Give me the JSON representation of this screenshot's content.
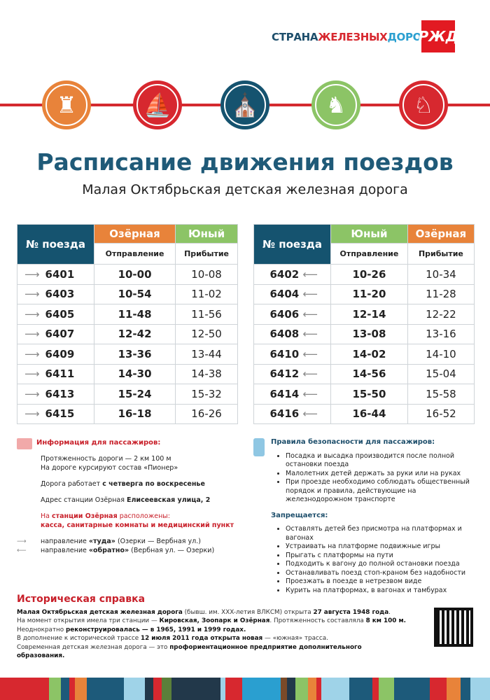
{
  "brand": {
    "part1": "СТРАНА",
    "part2": "ЖЕЛЕЗНЫХ",
    "part3": "ДОРОГ",
    "logo": "РЖД"
  },
  "icons": [
    {
      "name": "peter-paul-fortress-icon",
      "color": "#e8833a",
      "glyph": "♜"
    },
    {
      "name": "ship-icon",
      "color": "#d7282f",
      "glyph": "⛵"
    },
    {
      "name": "cathedral-icon",
      "color": "#15536f",
      "glyph": "⛪"
    },
    {
      "name": "bronze-horseman-icon",
      "color": "#8cc466",
      "glyph": "♞"
    },
    {
      "name": "griffin-icon",
      "color": "#d7282f",
      "glyph": "♘"
    }
  ],
  "title": "Расписание движения поездов",
  "subtitle": "Малая Октябрьская детская железная дорога",
  "colors": {
    "dark": "#15536f",
    "orange": "#e8833a",
    "green": "#8cc466",
    "red": "#d7282f"
  },
  "left_table": {
    "num_header": "№ поезда",
    "station1": "Озёрная",
    "station2": "Юный",
    "dep": "Отправление",
    "arr": "Прибытие",
    "arrow": "⟶",
    "rows": [
      [
        "6401",
        "10-00",
        "10-08"
      ],
      [
        "6403",
        "10-54",
        "11-02"
      ],
      [
        "6405",
        "11-48",
        "11-56"
      ],
      [
        "6407",
        "12-42",
        "12-50"
      ],
      [
        "6409",
        "13-36",
        "13-44"
      ],
      [
        "6411",
        "14-30",
        "14-38"
      ],
      [
        "6413",
        "15-24",
        "15-32"
      ],
      [
        "6415",
        "16-18",
        "16-26"
      ]
    ]
  },
  "right_table": {
    "num_header": "№ поезда",
    "station1": "Юный",
    "station2": "Озёрная",
    "dep": "Отправление",
    "arr": "Прибытие",
    "arrow": "⟵",
    "rows": [
      [
        "6402",
        "10-26",
        "10-34"
      ],
      [
        "6404",
        "11-20",
        "11-28"
      ],
      [
        "6406",
        "12-14",
        "12-22"
      ],
      [
        "6408",
        "13-08",
        "13-16"
      ],
      [
        "6410",
        "14-02",
        "14-10"
      ],
      [
        "6412",
        "14-56",
        "15-04"
      ],
      [
        "6414",
        "15-50",
        "15-58"
      ],
      [
        "6416",
        "16-44",
        "16-52"
      ]
    ]
  },
  "info": {
    "heading": "Информация для пассажиров:",
    "length": "Протяженность дороги — 2 км 100 м",
    "train": "На дороге курсируют состав «Пионер»",
    "works_prefix": "Дорога работает ",
    "works_bold": "с четверга по воскресенье",
    "addr_prefix": "Адрес станции Озёрная ",
    "addr_bold": "Елисеевская улица, 2",
    "st_prefix": "На ",
    "st_bold": "станции Озёрная",
    "st_suffix": " расположены:",
    "st_list": "касса, санитарные комнаты и медицинский пункт",
    "dir1_a": "направление ",
    "dir1_b": "«туда»",
    "dir1_c": " (Озерки — Вербная ул.)",
    "dir2_a": "направление ",
    "dir2_b": "«обратно»",
    "dir2_c": " (Вербная ул. — Озерки)"
  },
  "safety": {
    "heading": "Правила безопасности для пассажиров:",
    "rules": [
      "Посадка и высадка производится после полной остановки поезда",
      "Малолетних детей держать за руки или на руках",
      "При проезде необходимо соблюдать общественный порядок и правила, действующие на железнодорожном транспорте"
    ],
    "forbidden_heading": "Запрещается:",
    "forbidden": [
      "Оставлять детей без присмотра на платформах и вагонах",
      "Устраивать на платформе подвижные игры",
      "Прыгать с платформы на пути",
      "Подходить к вагону до полной остановки поезда",
      "Останавливать поезд стоп-краном без надобности",
      "Проезжать в поезде в нетрезвом виде",
      "Курить на платформах, в вагонах и тамбурах"
    ]
  },
  "history": {
    "heading": "Историческая справка",
    "l1": [
      "Малая Октябрьская детская железная дорога",
      " (бывш. им. XXX-летия ВЛКСМ) открыта ",
      "27 августа 1948 года",
      "."
    ],
    "l2": [
      "На момент открытия имела три станции — ",
      "Кировская, Зоопарк и Озёрная",
      ". Протяженность составляла ",
      "8 км 100 м."
    ],
    "l3": [
      "Неоднократно ",
      "реконструировалась — в 1965, 1991 и 1999 годах."
    ],
    "l4": [
      "В дополнение к исторической трассе ",
      "12 июля 2011 года открыта новая",
      " — «южная» трасса."
    ],
    "l5": [
      "Современная детская железная дорога — это ",
      "профориентационное предприятие дополнительного образования."
    ]
  },
  "stripe_colors": [
    "#d7282f",
    "#8cc466",
    "#1d5a7a",
    "#d7282f",
    "#e8833a",
    "#1d5a7a",
    "#9fd3e8",
    "#22384a",
    "#d7282f",
    "#5b7f3a",
    "#22384a",
    "#9fd3e8",
    "#d7282f",
    "#2a9fd0",
    "#7a4a28",
    "#22384a",
    "#8cc466",
    "#e8833a",
    "#d7282f",
    "#9fd3e8",
    "#1d5a7a"
  ]
}
